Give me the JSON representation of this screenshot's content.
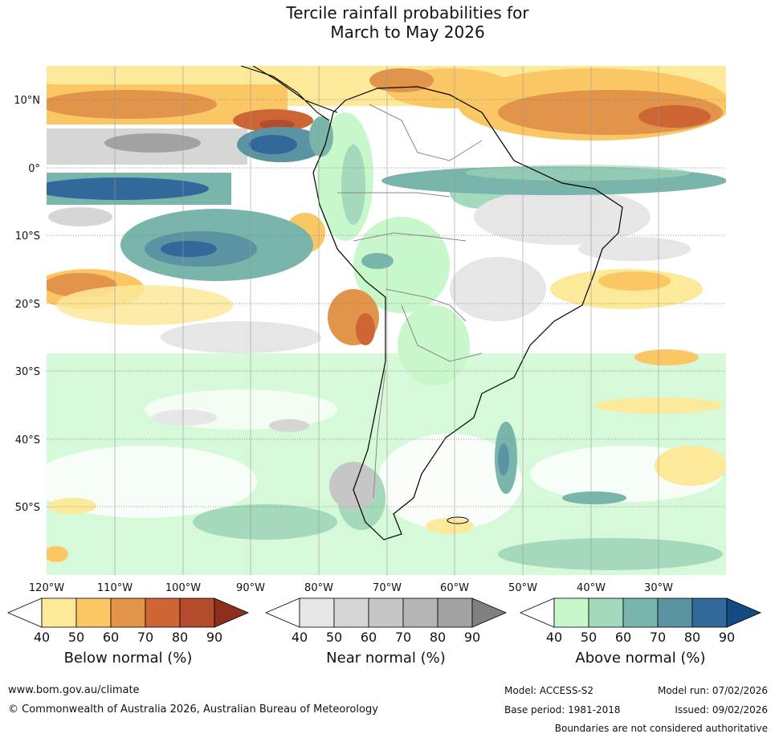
{
  "title": {
    "line1": "Tercile rainfall probabilities for",
    "line2": "March to May 2026"
  },
  "map": {
    "lat_labels": [
      "10°N",
      "0°",
      "10°S",
      "20°S",
      "30°S",
      "40°S",
      "50°S"
    ],
    "lon_labels": [
      "120°W",
      "110°W",
      "100°W",
      "90°W",
      "80°W",
      "70°W",
      "60°W",
      "50°W",
      "40°W",
      "30°W"
    ]
  },
  "legends": [
    {
      "caption": "Below normal (%)",
      "ticks": [
        "40",
        "50",
        "60",
        "70",
        "80",
        "90"
      ],
      "colors": [
        "#ffffff",
        "#fde99a",
        "#fbc764",
        "#e2944a",
        "#cd6535",
        "#b44b2c",
        "#8c2f1c"
      ]
    },
    {
      "caption": "Near normal (%)",
      "ticks": [
        "40",
        "50",
        "60",
        "70",
        "80",
        "90"
      ],
      "colors": [
        "#ffffff",
        "#e6e6e6",
        "#d6d6d6",
        "#c6c6c6",
        "#b4b4b4",
        "#a2a2a2",
        "#808080"
      ]
    },
    {
      "caption": "Above normal (%)",
      "ticks": [
        "40",
        "50",
        "60",
        "70",
        "80",
        "90"
      ],
      "colors": [
        "#ffffff",
        "#c8f7cc",
        "#a4d9bb",
        "#79b5ab",
        "#5b93a3",
        "#33689a",
        "#134a83"
      ]
    }
  ],
  "footer": {
    "website": "www.bom.gov.au/climate",
    "copyright": "© Commonwealth of Australia 2026, Australian Bureau of Meteorology",
    "model": "Model: ACCESS-S2",
    "base_period": "Base period: 1981-2018",
    "model_run": "Model run: 07/02/2026",
    "issued": "Issued: 09/02/2026",
    "disclaimer": "Boundaries are not considered authoritative"
  },
  "colors": {
    "land_outline": "#000000",
    "border": "#888888",
    "grid": "#777777"
  }
}
